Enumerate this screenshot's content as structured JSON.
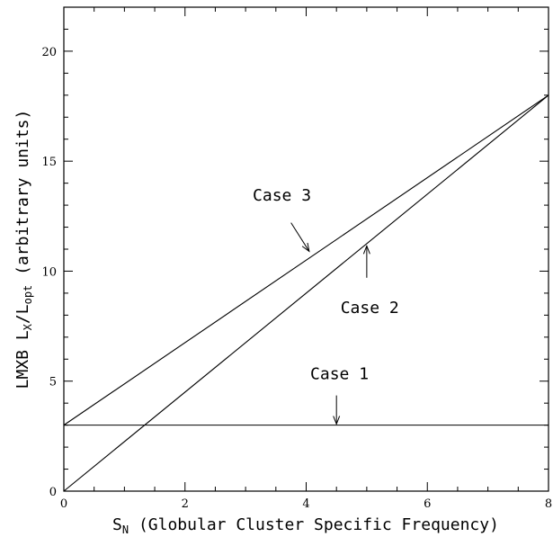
{
  "chart_data": {
    "type": "line",
    "xlabel": {
      "symbol": "S",
      "sub": "N",
      "text": " (Globular Cluster Specific Frequency)"
    },
    "ylabel": {
      "pre": "LMXB L",
      "sub1": "X",
      "mid": "/L",
      "sub2": "opt",
      "post": "  (arbitrary units)"
    },
    "xlim": [
      0,
      8
    ],
    "ylim": [
      0,
      22
    ],
    "x_ticks": [
      0,
      2,
      4,
      6,
      8
    ],
    "x_tick_labels": [
      "0",
      "2",
      "4",
      "6",
      "8"
    ],
    "y_ticks": [
      0,
      5,
      10,
      15,
      20
    ],
    "y_tick_labels": [
      "0",
      "5",
      "10",
      "15",
      "20"
    ],
    "grid": false,
    "series": [
      {
        "name": "Case 1",
        "x": [
          0,
          8
        ],
        "y": [
          3,
          3
        ]
      },
      {
        "name": "Case 2",
        "x": [
          0,
          8
        ],
        "y": [
          0,
          18
        ]
      },
      {
        "name": "Case 3",
        "x": [
          0,
          8
        ],
        "y": [
          3,
          18
        ]
      }
    ],
    "annotations": [
      {
        "text": "Case 3",
        "text_at": [
          3.6,
          13.2
        ],
        "arrow_from": [
          3.75,
          12.2
        ],
        "arrow_to": [
          4.05,
          10.9
        ]
      },
      {
        "text": "Case 2",
        "text_at": [
          5.05,
          8.1
        ],
        "arrow_from": [
          5.0,
          9.7
        ],
        "arrow_to": [
          5.0,
          11.15
        ]
      },
      {
        "text": "Case 1",
        "text_at": [
          4.55,
          5.1
        ],
        "arrow_from": [
          4.5,
          4.35
        ],
        "arrow_to": [
          4.5,
          3.05
        ]
      }
    ]
  }
}
